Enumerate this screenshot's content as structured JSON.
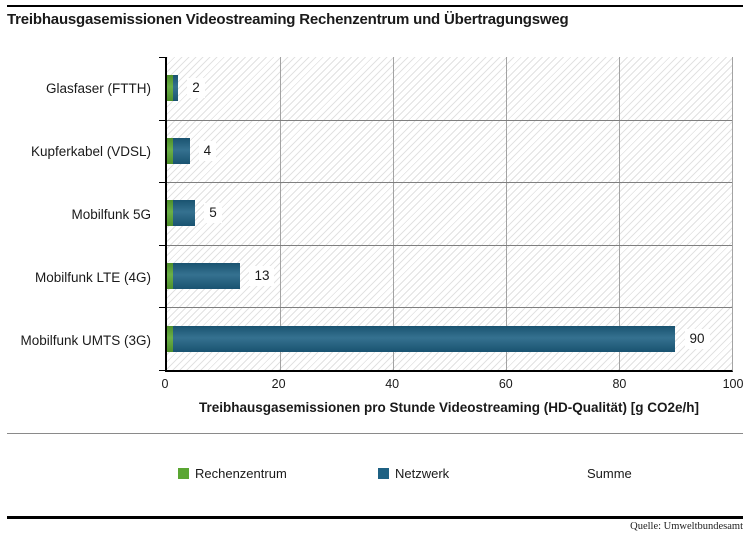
{
  "title": "Treibhausgasemissionen Videostreaming Rechenzentrum und Übertragungsweg",
  "source": "Quelle: Umweltbundesamt",
  "chart_data": {
    "type": "bar",
    "orientation": "horizontal",
    "stacked": true,
    "title": "Treibhausgasemissionen Videostreaming Rechenzentrum und Übertragungsweg",
    "categories": [
      "Glasfaser (FTTH)",
      "Kupferkabel (VDSL)",
      "Mobilfunk 5G",
      "Mobilfunk LTE (4G)",
      "Mobilfunk UMTS (3G)"
    ],
    "series": [
      {
        "name": "Rechenzentrum",
        "color": "#5aa632",
        "values": [
          1,
          1,
          1,
          1,
          1
        ]
      },
      {
        "name": "Netzwerk",
        "color": "#1e6183",
        "values": [
          1,
          3,
          4,
          12,
          89
        ]
      }
    ],
    "totals": {
      "name": "Summe",
      "values": [
        2,
        4,
        5,
        13,
        90
      ]
    },
    "xlabel": "Treibhausgasemissionen pro Stunde Videostreaming (HD-Qualität) [g CO2e/h]",
    "xlim": [
      0,
      100
    ],
    "xticks": [
      0,
      20,
      40,
      60,
      80,
      100
    ],
    "grid": "vertical-major",
    "plot_background": "diagonal-hatch",
    "legend_position": "bottom"
  },
  "legend": {
    "items": [
      {
        "label": "Rechenzentrum",
        "color": "#5aa632"
      },
      {
        "label": "Netzwerk",
        "color": "#1e6183"
      },
      {
        "label": "Summe",
        "color": ""
      }
    ]
  }
}
